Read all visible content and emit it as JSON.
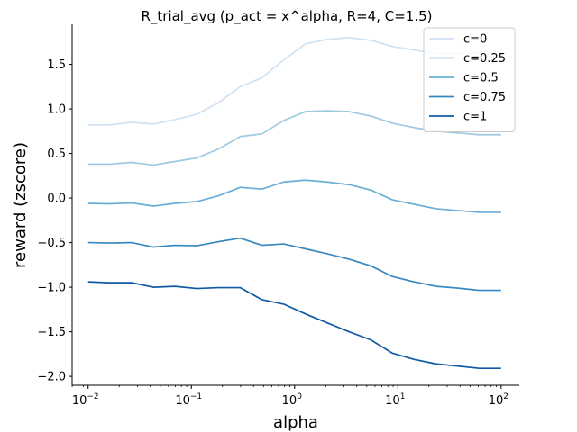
{
  "chart_data": {
    "type": "line",
    "title": "R_trial_avg (p_act = x^alpha, R=4, C=1.5)",
    "xlabel": "alpha",
    "ylabel": "reward (zscore)",
    "xscale": "log",
    "xlim": [
      0.007,
      150
    ],
    "ylim": [
      -2.1,
      1.95
    ],
    "x_ticks": [
      0.01,
      0.1,
      1,
      10,
      100
    ],
    "x_tick_labels": [
      {
        "base": "10",
        "exp": "−2"
      },
      {
        "base": "10",
        "exp": "−1"
      },
      {
        "base": "10",
        "exp": "0"
      },
      {
        "base": "10",
        "exp": "1"
      },
      {
        "base": "10",
        "exp": "2"
      }
    ],
    "y_ticks": [
      -2.0,
      -1.5,
      -1.0,
      -0.5,
      0.0,
      0.5,
      1.0,
      1.5
    ],
    "y_tick_labels": [
      "−2.0",
      "−1.5",
      "−1.0",
      "−0.5",
      "0.0",
      "0.5",
      "1.0",
      "1.5"
    ],
    "grid": false,
    "legend_position": "top-right",
    "x": [
      0.01,
      0.0162,
      0.0264,
      0.0428,
      0.0695,
      0.1129,
      0.1833,
      0.2976,
      0.4833,
      0.7848,
      1.2743,
      2.0691,
      3.3598,
      5.4556,
      8.8587,
      14.3845,
      23.3572,
      37.9269,
      61.5848,
      100
    ],
    "series": [
      {
        "name": "c=0",
        "color": "#cfe1f2",
        "values": [
          0.82,
          0.82,
          0.85,
          0.83,
          0.88,
          0.94,
          1.07,
          1.25,
          1.35,
          1.55,
          1.73,
          1.78,
          1.8,
          1.77,
          1.7,
          1.66,
          1.62,
          1.62,
          1.63,
          1.63
        ]
      },
      {
        "name": "c=0.25",
        "color": "#9ecae1",
        "values": [
          0.38,
          0.38,
          0.4,
          0.37,
          0.41,
          0.45,
          0.55,
          0.69,
          0.72,
          0.87,
          0.97,
          0.98,
          0.97,
          0.92,
          0.84,
          0.79,
          0.75,
          0.73,
          0.71,
          0.71
        ]
      },
      {
        "name": "c=0.5",
        "color": "#6aaed6",
        "values": [
          -0.06,
          -0.065,
          -0.055,
          -0.09,
          -0.06,
          -0.04,
          0.025,
          0.12,
          0.1,
          0.18,
          0.2,
          0.18,
          0.15,
          0.09,
          -0.02,
          -0.07,
          -0.12,
          -0.14,
          -0.16,
          -0.16
        ]
      },
      {
        "name": "c=0.75",
        "color": "#3787c0",
        "values": [
          -0.5,
          -0.505,
          -0.5,
          -0.55,
          -0.53,
          -0.535,
          -0.49,
          -0.45,
          -0.53,
          -0.515,
          -0.57,
          -0.625,
          -0.685,
          -0.76,
          -0.88,
          -0.94,
          -0.99,
          -1.01,
          -1.035,
          -1.035
        ]
      },
      {
        "name": "c=1",
        "color": "#105ba4",
        "values": [
          -0.94,
          -0.95,
          -0.95,
          -1.0,
          -0.99,
          -1.015,
          -1.005,
          -1.005,
          -1.14,
          -1.19,
          -1.3,
          -1.4,
          -1.5,
          -1.59,
          -1.74,
          -1.81,
          -1.86,
          -1.885,
          -1.91,
          -1.91
        ]
      }
    ]
  }
}
